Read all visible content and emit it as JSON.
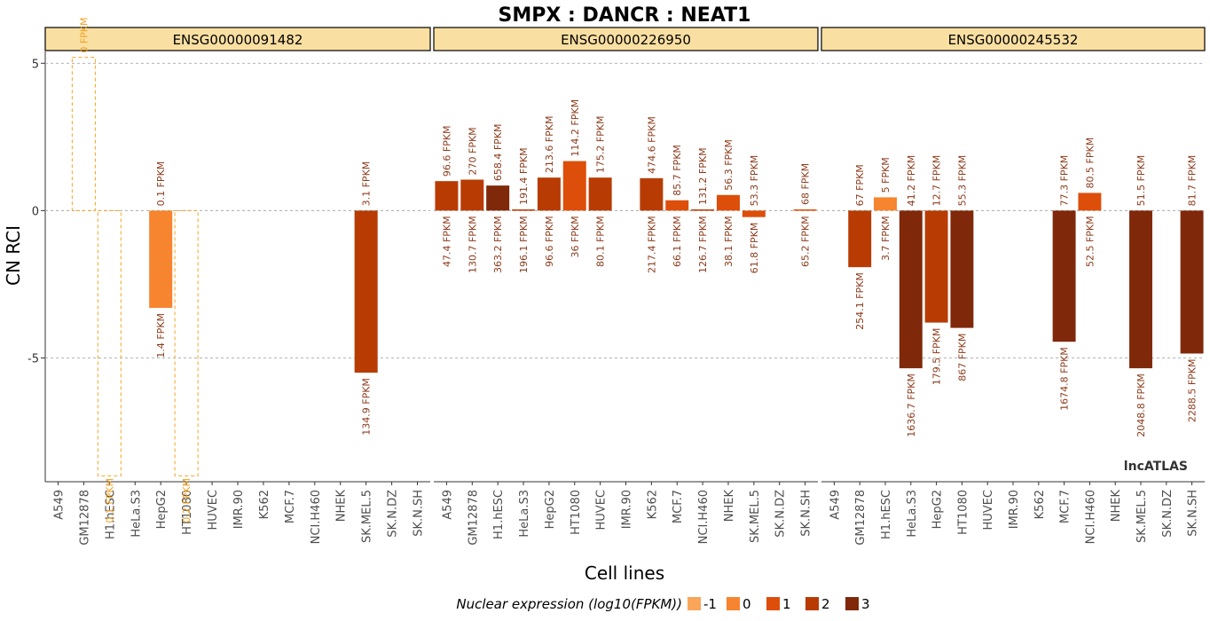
{
  "chart_data": {
    "type": "bar",
    "title": "SMPX : DANCR : NEAT1",
    "xlabel": "Cell lines",
    "ylabel": "CN RCI",
    "ylim": [
      -9.2,
      5.4
    ],
    "yticks": [
      5,
      0,
      -5
    ],
    "ytick_labels": [
      "5",
      "0",
      "-5"
    ],
    "grid": "horizontal dashed at y ticks",
    "categories": [
      "A549",
      "GM12878",
      "H1.hESC",
      "HeLa.S3",
      "HepG2",
      "HT1080",
      "HUVEC",
      "IMR.90",
      "K562",
      "MCF.7",
      "NCI.H460",
      "NHEK",
      "SK.MEL.5",
      "SK.N.DZ",
      "SK.N.SH"
    ],
    "panels": [
      {
        "name": "ENSG00000091482",
        "bars": [
          {
            "cell": "GM12878",
            "value": 5.2,
            "level": -1,
            "style": "dashed",
            "top": "0 FPKM",
            "bottom": ""
          },
          {
            "cell": "H1.hESC",
            "value": -9.0,
            "level": -1,
            "style": "dashed",
            "top": "",
            "bottom": "0.1 FPKM"
          },
          {
            "cell": "HepG2",
            "value": -3.3,
            "level": 0,
            "style": "solid",
            "top": "0.1 FPKM",
            "bottom": "1.4 FPKM"
          },
          {
            "cell": "HT1080",
            "value": -9.0,
            "level": -1,
            "style": "dashed",
            "top": "",
            "bottom": "0.2 FPKM"
          },
          {
            "cell": "SK.MEL.5",
            "value": -5.5,
            "level": 2,
            "style": "solid",
            "top": "3.1 FPKM",
            "bottom": "134.9 FPKM"
          }
        ]
      },
      {
        "name": "ENSG00000226950",
        "bars": [
          {
            "cell": "A549",
            "value": 1.0,
            "level": 2,
            "style": "solid",
            "top": "96.6 FPKM",
            "bottom": "47.4 FPKM"
          },
          {
            "cell": "GM12878",
            "value": 1.05,
            "level": 2,
            "style": "solid",
            "top": "270 FPKM",
            "bottom": "130.7 FPKM"
          },
          {
            "cell": "H1.hESC",
            "value": 0.85,
            "level": 3,
            "style": "solid",
            "top": "658.4 FPKM",
            "bottom": "363.2 FPKM"
          },
          {
            "cell": "HeLa.S3",
            "value": 0.04,
            "level": 2,
            "style": "solid",
            "top": "191.4 FPKM",
            "bottom": "196.1 FPKM"
          },
          {
            "cell": "HepG2",
            "value": 1.12,
            "level": 2,
            "style": "solid",
            "top": "213.6 FPKM",
            "bottom": "96.6 FPKM"
          },
          {
            "cell": "HT1080",
            "value": 1.68,
            "level": 1,
            "style": "solid",
            "top": "114.2 FPKM",
            "bottom": "36 FPKM"
          },
          {
            "cell": "HUVEC",
            "value": 1.12,
            "level": 2,
            "style": "solid",
            "top": "175.2 FPKM",
            "bottom": "80.1 FPKM"
          },
          {
            "cell": "K562",
            "value": 1.1,
            "level": 2,
            "style": "solid",
            "top": "474.6 FPKM",
            "bottom": "217.4 FPKM"
          },
          {
            "cell": "MCF.7",
            "value": 0.35,
            "level": 1,
            "style": "solid",
            "top": "85.7 FPKM",
            "bottom": "66.1 FPKM"
          },
          {
            "cell": "NCI.H460",
            "value": 0.04,
            "level": 2,
            "style": "solid",
            "top": "131.2 FPKM",
            "bottom": "126.7 FPKM"
          },
          {
            "cell": "NHEK",
            "value": 0.53,
            "level": 1,
            "style": "solid",
            "top": "56.3 FPKM",
            "bottom": "38.1 FPKM"
          },
          {
            "cell": "SK.MEL.5",
            "value": -0.22,
            "level": 1,
            "style": "solid",
            "top": "53.3 FPKM",
            "bottom": "61.8 FPKM"
          },
          {
            "cell": "SK.N.SH",
            "value": 0.04,
            "level": 1,
            "style": "solid",
            "top": "68 FPKM",
            "bottom": "65.2 FPKM"
          }
        ]
      },
      {
        "name": "ENSG00000245532",
        "bars": [
          {
            "cell": "GM12878",
            "value": -1.92,
            "level": 2,
            "style": "solid",
            "top": "67 FPKM",
            "bottom": "254.1 FPKM"
          },
          {
            "cell": "H1.hESC",
            "value": 0.45,
            "level": 0,
            "style": "solid",
            "top": "5 FPKM",
            "bottom": "3.7 FPKM"
          },
          {
            "cell": "HeLa.S3",
            "value": -5.35,
            "level": 3,
            "style": "solid",
            "top": "41.2 FPKM",
            "bottom": "1636.7 FPKM"
          },
          {
            "cell": "HepG2",
            "value": -3.8,
            "level": 2,
            "style": "solid",
            "top": "12.7 FPKM",
            "bottom": "179.5 FPKM"
          },
          {
            "cell": "HT1080",
            "value": -3.98,
            "level": 3,
            "style": "solid",
            "top": "55.3 FPKM",
            "bottom": "867 FPKM"
          },
          {
            "cell": "MCF.7",
            "value": -4.45,
            "level": 3,
            "style": "solid",
            "top": "77.3 FPKM",
            "bottom": "1674.8 FPKM"
          },
          {
            "cell": "NCI.H460",
            "value": 0.6,
            "level": 1,
            "style": "solid",
            "top": "80.5 FPKM",
            "bottom": "52.5 FPKM"
          },
          {
            "cell": "SK.MEL.5",
            "value": -5.35,
            "level": 3,
            "style": "solid",
            "top": "51.5 FPKM",
            "bottom": "2048.8 FPKM"
          },
          {
            "cell": "SK.N.SH",
            "value": -4.85,
            "level": 3,
            "style": "solid",
            "top": "81.7 FPKM",
            "bottom": "2288.5 FPKM"
          }
        ]
      }
    ],
    "legend": {
      "title": "Nuclear expression (log10(FPKM))",
      "position": "bottom",
      "items": [
        {
          "label": "-1",
          "color": "#f9a65a"
        },
        {
          "label": "0",
          "color": "#f7842f"
        },
        {
          "label": "1",
          "color": "#dd4e0a"
        },
        {
          "label": "2",
          "color": "#b83b04"
        },
        {
          "label": "3",
          "color": "#80280a"
        }
      ]
    },
    "label_colors": {
      "dashed": "#f0a020",
      "solid": "#8b3a1a"
    },
    "watermark": "lncATLAS"
  }
}
